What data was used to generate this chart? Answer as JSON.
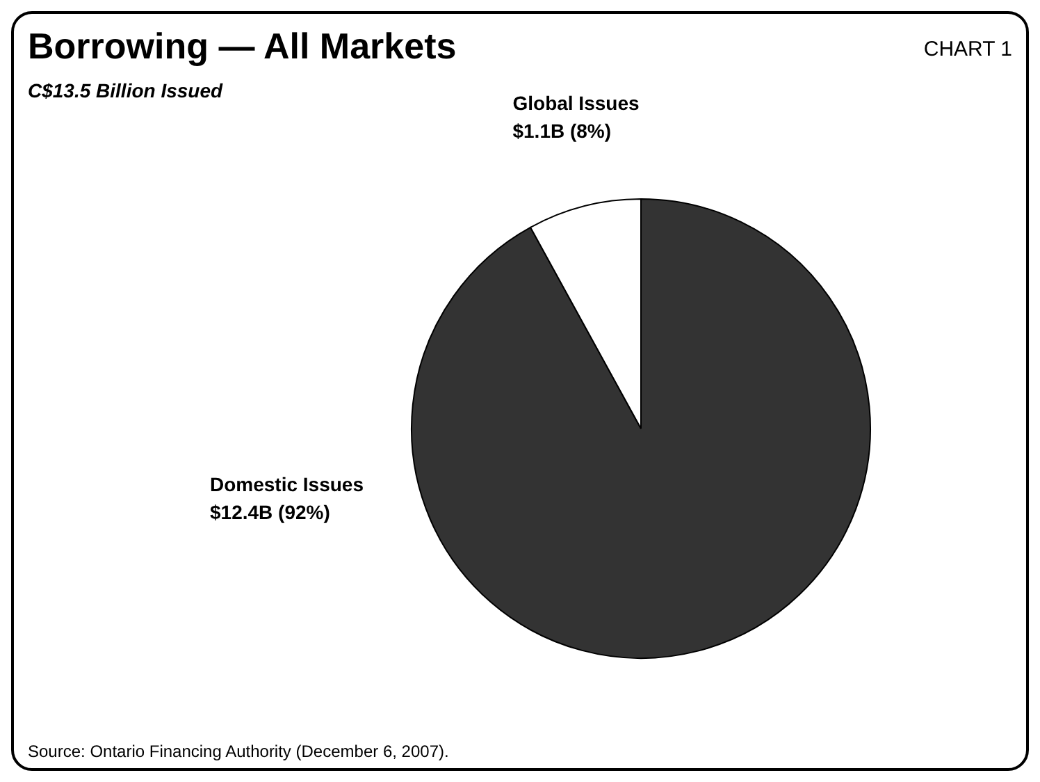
{
  "chart_data": {
    "type": "pie",
    "title": "Borrowing — All Markets",
    "subtitle": "C$13.5 Billion Issued",
    "categories": [
      "Domestic Issues",
      "Global Issues"
    ],
    "values": [
      92,
      8
    ],
    "value_labels": [
      "$12.4B (92%)",
      "$1.1B (8%)"
    ],
    "colors": [
      "#333333",
      "#ffffff"
    ],
    "annotations": [
      "CHART 1",
      "Source: Ontario Financing Authority (December 6, 2007)."
    ]
  }
}
